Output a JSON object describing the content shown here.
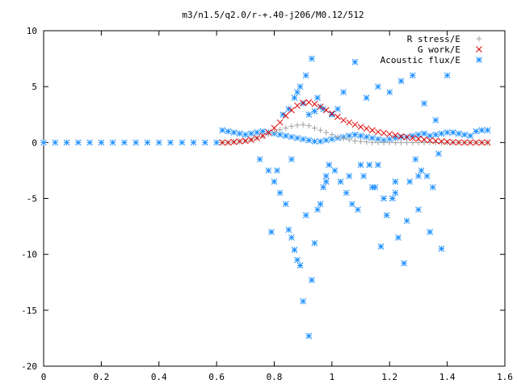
{
  "chart_data": {
    "type": "scatter",
    "title": "m3/n1.5/q2.0/r-+.40-j206/M0.12/512",
    "xlabel": "",
    "ylabel": "",
    "xlim": [
      0,
      1.6
    ],
    "ylim": [
      -20,
      10
    ],
    "xticks": [
      {
        "v": 0,
        "label": "0"
      },
      {
        "v": 0.2,
        "label": "0.2"
      },
      {
        "v": 0.4,
        "label": "0.4"
      },
      {
        "v": 0.6,
        "label": "0.6"
      },
      {
        "v": 0.8,
        "label": "0.8"
      },
      {
        "v": 1.0,
        "label": "1"
      },
      {
        "v": 1.2,
        "label": "1.2"
      },
      {
        "v": 1.4,
        "label": "1.4"
      },
      {
        "v": 1.6,
        "label": "1.6"
      }
    ],
    "yticks": [
      {
        "v": -20,
        "label": "-20"
      },
      {
        "v": -15,
        "label": "-15"
      },
      {
        "v": -10,
        "label": "-10"
      },
      {
        "v": -5,
        "label": "-5"
      },
      {
        "v": 0,
        "label": "0"
      },
      {
        "v": 5,
        "label": "5"
      },
      {
        "v": 10,
        "label": "10"
      }
    ],
    "grid": false,
    "legend_position": "top-right",
    "series": [
      {
        "name": "R stress/E",
        "marker": "plus",
        "color": "#a0a0a0",
        "x": [
          0.62,
          0.64,
          0.66,
          0.68,
          0.7,
          0.72,
          0.74,
          0.76,
          0.78,
          0.8,
          0.82,
          0.84,
          0.86,
          0.88,
          0.9,
          0.92,
          0.94,
          0.96,
          0.98,
          1.0,
          1.02,
          1.04,
          1.06,
          1.08,
          1.1,
          1.12,
          1.14,
          1.16,
          1.18,
          1.2,
          1.22,
          1.24,
          1.26,
          1.28,
          1.3,
          1.32,
          1.34,
          1.36,
          1.38,
          1.4,
          1.42,
          1.44,
          1.46,
          1.48,
          1.5,
          1.52,
          1.54
        ],
        "y": [
          0.0,
          0.0,
          0.05,
          0.1,
          0.15,
          0.25,
          0.4,
          0.55,
          0.75,
          0.95,
          1.15,
          1.3,
          1.45,
          1.55,
          1.6,
          1.5,
          1.3,
          1.1,
          0.9,
          0.7,
          0.5,
          0.35,
          0.25,
          0.15,
          0.1,
          0.05,
          0.0,
          0.0,
          0.0,
          0.0,
          0.0,
          0.0,
          0.0,
          0.0,
          0.0,
          0.0,
          0.0,
          0.0,
          0.0,
          0.0,
          0.0,
          0.0,
          0.0,
          0.0,
          0.0,
          0.0,
          0.0
        ]
      },
      {
        "name": "G work/E",
        "marker": "cross",
        "color": "#e00000",
        "x": [
          0.62,
          0.64,
          0.66,
          0.68,
          0.7,
          0.72,
          0.74,
          0.76,
          0.78,
          0.8,
          0.82,
          0.84,
          0.86,
          0.88,
          0.9,
          0.92,
          0.94,
          0.96,
          0.98,
          1.0,
          1.02,
          1.04,
          1.06,
          1.08,
          1.1,
          1.12,
          1.14,
          1.16,
          1.18,
          1.2,
          1.22,
          1.24,
          1.26,
          1.28,
          1.3,
          1.32,
          1.34,
          1.36,
          1.38,
          1.4,
          1.42,
          1.44,
          1.46,
          1.48,
          1.5,
          1.52,
          1.54
        ],
        "y": [
          0.0,
          0.0,
          0.05,
          0.1,
          0.15,
          0.25,
          0.4,
          0.6,
          0.9,
          1.3,
          1.8,
          2.4,
          2.9,
          3.3,
          3.55,
          3.6,
          3.45,
          3.2,
          2.9,
          2.6,
          2.3,
          2.0,
          1.8,
          1.6,
          1.4,
          1.25,
          1.1,
          0.95,
          0.85,
          0.75,
          0.65,
          0.55,
          0.48,
          0.4,
          0.33,
          0.27,
          0.2,
          0.15,
          0.1,
          0.06,
          0.03,
          0.01,
          0.0,
          0.0,
          0.0,
          0.0,
          0.0
        ]
      },
      {
        "name": "Acoustic flux/E",
        "marker": "asterisk",
        "color": "#1e90ff",
        "x": [
          0.0,
          0.04,
          0.08,
          0.12,
          0.16,
          0.2,
          0.24,
          0.28,
          0.32,
          0.36,
          0.4,
          0.44,
          0.48,
          0.52,
          0.56,
          0.6,
          0.62,
          0.64,
          0.66,
          0.68,
          0.7,
          0.72,
          0.74,
          0.76,
          0.78,
          0.8,
          0.82,
          0.84,
          0.86,
          0.88,
          0.9,
          0.92,
          0.94,
          0.96,
          0.98,
          1.0,
          1.02,
          1.04,
          1.06,
          1.08,
          1.1,
          1.12,
          1.14,
          1.16,
          1.18,
          1.2,
          1.22,
          1.24,
          1.26,
          1.28,
          1.3,
          1.32,
          1.34,
          1.36,
          1.38,
          1.4,
          1.42,
          1.44,
          1.46,
          1.48,
          1.5,
          1.52,
          1.54,
          0.75,
          0.78,
          0.8,
          0.82,
          0.84,
          0.85,
          0.86,
          0.87,
          0.88,
          0.89,
          0.9,
          0.91,
          0.92,
          0.93,
          0.94,
          0.95,
          0.96,
          0.97,
          0.98,
          0.99,
          1.01,
          1.03,
          1.05,
          1.07,
          1.09,
          1.11,
          1.13,
          1.15,
          1.17,
          1.19,
          1.21,
          1.23,
          1.25,
          1.27,
          1.29,
          1.31,
          1.33,
          1.35,
          1.37,
          0.83,
          0.85,
          0.87,
          0.89,
          0.91,
          0.93,
          0.95,
          0.97,
          1.0,
          1.04,
          1.08,
          1.12,
          1.16,
          1.2,
          1.24,
          1.28,
          1.32,
          1.36,
          1.4,
          0.88,
          0.9,
          0.92,
          0.94,
          0.96,
          1.02,
          1.06,
          1.1,
          1.14,
          1.18,
          1.22,
          1.26,
          1.3,
          1.34,
          1.38,
          0.79,
          0.81,
          0.86,
          0.98,
          1.16,
          1.22,
          1.3
        ],
        "y": [
          0,
          0,
          0,
          0,
          0,
          0,
          0,
          0,
          0,
          0,
          0,
          0,
          0,
          0,
          0,
          0,
          1.1,
          1.0,
          0.9,
          0.8,
          0.7,
          0.8,
          0.9,
          1.0,
          0.9,
          0.8,
          0.7,
          0.6,
          0.5,
          0.4,
          0.3,
          0.2,
          0.1,
          0.1,
          0.2,
          0.3,
          0.4,
          0.5,
          0.6,
          0.7,
          0.6,
          0.5,
          0.4,
          0.3,
          0.2,
          0.3,
          0.4,
          0.5,
          0.5,
          0.6,
          0.7,
          0.8,
          0.6,
          0.7,
          0.8,
          0.9,
          0.9,
          0.8,
          0.7,
          0.6,
          1.0,
          1.1,
          1.1,
          -1.5,
          -2.5,
          -3.5,
          -4.5,
          -5.5,
          -7.8,
          -8.5,
          -9.6,
          -10.5,
          -11.0,
          -14.2,
          -6.5,
          -17.3,
          -12.3,
          -9.0,
          -6.0,
          -5.5,
          -4.0,
          -3.0,
          -2.0,
          -2.5,
          -3.5,
          -4.5,
          -5.5,
          -6.0,
          -3.0,
          -2.0,
          -4.0,
          -9.3,
          -6.5,
          -5.0,
          -8.5,
          -10.8,
          -3.5,
          -1.5,
          -2.5,
          -3.0,
          -4.0,
          -1.0,
          2.5,
          3.0,
          4.0,
          5.0,
          6.0,
          7.5,
          4.0,
          3.0,
          2.5,
          4.5,
          7.2,
          4.0,
          5.0,
          4.5,
          5.5,
          6.0,
          3.5,
          2.0,
          6.0,
          4.5,
          3.5,
          2.5,
          2.8,
          3.2,
          3.0,
          -3.0,
          -2.0,
          -4.0,
          -5.0,
          -3.5,
          -7.0,
          -6.0,
          -8.0,
          -9.5,
          -8.0,
          -2.5,
          -1.5,
          -3.5,
          -2.0,
          -4.5,
          -3.0
        ]
      }
    ]
  }
}
